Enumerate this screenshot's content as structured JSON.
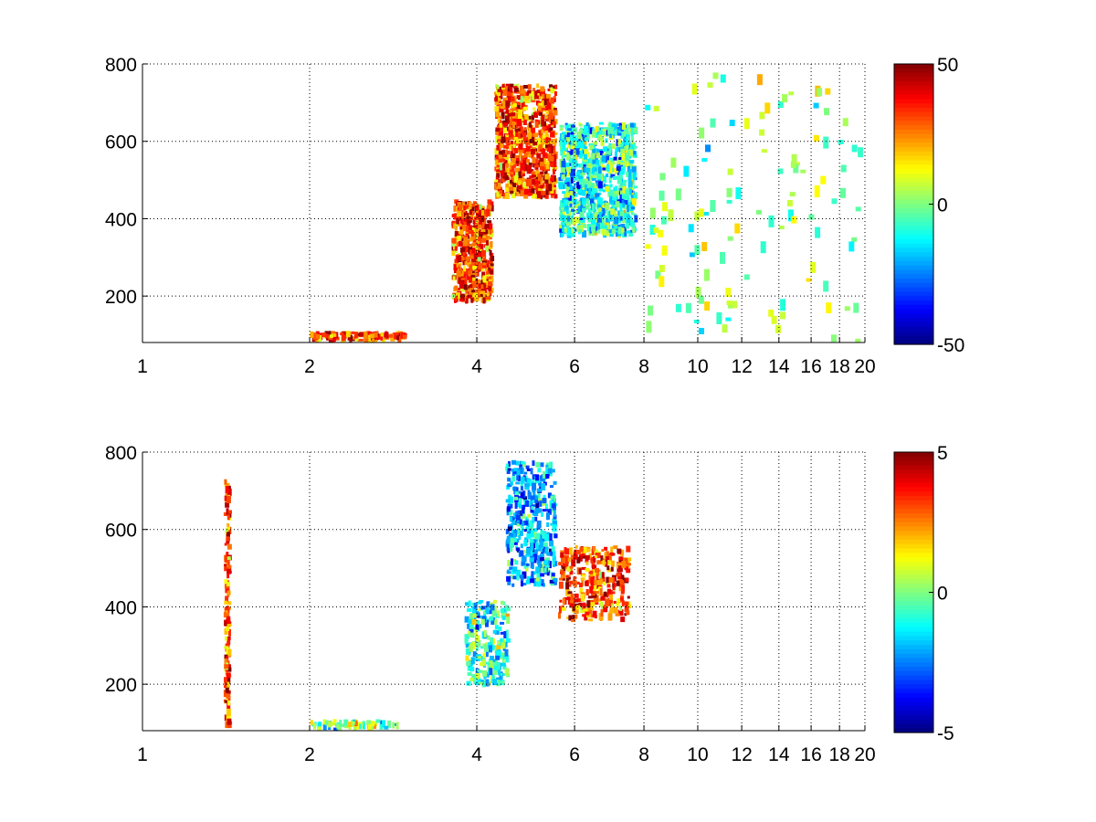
{
  "chart_data": [
    {
      "type": "heatmap",
      "title": "",
      "xlabel": "",
      "ylabel": "",
      "xscale": "log",
      "xlim": [
        1,
        20
      ],
      "ylim": [
        80,
        800
      ],
      "xticks": [
        1,
        2,
        4,
        6,
        8,
        10,
        12,
        14,
        16,
        18,
        20
      ],
      "xtick_labels": [
        "1",
        "2",
        "4",
        "6",
        "8",
        "10",
        "12",
        "14",
        "16",
        "18",
        "20"
      ],
      "yticks": [
        200,
        400,
        600,
        800
      ],
      "ytick_labels": [
        "200",
        "400",
        "600",
        "800"
      ],
      "grid": true,
      "colormap": "jet",
      "clim": [
        -50,
        50
      ],
      "colorbar_ticks": [
        50,
        0,
        -50
      ],
      "colorbar_tick_labels": [
        "50",
        "0",
        "-50"
      ],
      "colorbar_location": "right",
      "regions": [
        {
          "x": [
            2.0,
            3.0
          ],
          "y": [
            80,
            110
          ],
          "value": 30
        },
        {
          "x": [
            3.6,
            4.3
          ],
          "y": [
            180,
            450
          ],
          "value": 30
        },
        {
          "x": [
            4.3,
            5.6
          ],
          "y": [
            450,
            750
          ],
          "value": 30
        },
        {
          "x": [
            5.6,
            7.8
          ],
          "y": [
            350,
            650
          ],
          "value": -10
        },
        {
          "x": [
            8.0,
            20.0
          ],
          "y": [
            80,
            800
          ],
          "value": 0
        }
      ]
    },
    {
      "type": "heatmap",
      "title": "",
      "xlabel": "",
      "ylabel": "",
      "xscale": "log",
      "xlim": [
        1,
        20
      ],
      "ylim": [
        80,
        800
      ],
      "xticks": [
        1,
        2,
        4,
        6,
        8,
        10,
        12,
        14,
        16,
        18,
        20
      ],
      "xtick_labels": [
        "1",
        "2",
        "4",
        "6",
        "8",
        "10",
        "12",
        "14",
        "16",
        "18",
        "20"
      ],
      "yticks": [
        200,
        400,
        600,
        800
      ],
      "ytick_labels": [
        "200",
        "400",
        "600",
        "800"
      ],
      "grid": true,
      "colormap": "jet",
      "clim": [
        -5,
        5
      ],
      "colorbar_ticks": [
        5,
        0,
        -5
      ],
      "colorbar_tick_labels": [
        "5",
        "0",
        "-5"
      ],
      "colorbar_location": "right",
      "regions": [
        {
          "x": [
            1.4,
            1.45
          ],
          "y": [
            80,
            730
          ],
          "value": 3
        },
        {
          "x": [
            2.0,
            2.9
          ],
          "y": [
            80,
            110
          ],
          "value": 0
        },
        {
          "x": [
            3.8,
            4.6
          ],
          "y": [
            190,
            420
          ],
          "value": -1
        },
        {
          "x": [
            4.5,
            5.6
          ],
          "y": [
            450,
            780
          ],
          "value": -2
        },
        {
          "x": [
            5.6,
            7.6
          ],
          "y": [
            360,
            560
          ],
          "value": 3
        }
      ]
    }
  ]
}
